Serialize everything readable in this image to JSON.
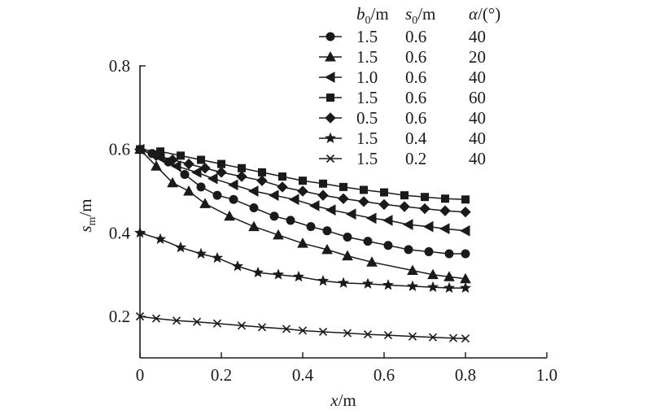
{
  "chart_data": {
    "type": "line",
    "xlabel": "x/m",
    "ylabel": "s_m/m",
    "xlim": [
      0,
      1.0
    ],
    "ylim": [
      0.1,
      0.8
    ],
    "x_ticks": [
      "0",
      "0.2",
      "0.4",
      "0.6",
      "0.8",
      "1.0"
    ],
    "y_ticks": [
      "0.2",
      "0.4",
      "0.6",
      "0.8"
    ],
    "grid": false,
    "legend_position": "top-right",
    "legend_headers": {
      "b0": {
        "sym": "b",
        "sub": "0",
        "unit": "/m"
      },
      "s0": {
        "sym": "s",
        "sub": "0",
        "unit": "/m"
      },
      "alpha": {
        "sym": "α",
        "sub": "",
        "unit": "/(°)"
      }
    },
    "series": [
      {
        "b0": "1.5",
        "s0": "0.6",
        "alpha": "40",
        "marker": "circle",
        "x": [
          0,
          0.03,
          0.07,
          0.11,
          0.15,
          0.19,
          0.23,
          0.28,
          0.33,
          0.37,
          0.42,
          0.46,
          0.51,
          0.56,
          0.61,
          0.66,
          0.71,
          0.76,
          0.8
        ],
        "y": [
          0.6,
          0.59,
          0.57,
          0.54,
          0.51,
          0.49,
          0.48,
          0.46,
          0.44,
          0.43,
          0.415,
          0.405,
          0.39,
          0.38,
          0.37,
          0.36,
          0.355,
          0.35,
          0.35
        ]
      },
      {
        "b0": "1.5",
        "s0": "0.6",
        "alpha": "20",
        "marker": "triangle-up",
        "x": [
          0,
          0.04,
          0.08,
          0.12,
          0.16,
          0.22,
          0.28,
          0.34,
          0.4,
          0.46,
          0.51,
          0.57,
          0.67,
          0.72,
          0.76,
          0.8
        ],
        "y": [
          0.6,
          0.56,
          0.52,
          0.5,
          0.47,
          0.44,
          0.415,
          0.395,
          0.375,
          0.36,
          0.345,
          0.33,
          0.31,
          0.3,
          0.295,
          0.29
        ]
      },
      {
        "b0": "1.0",
        "s0": "0.6",
        "alpha": "40",
        "marker": "triangle-left",
        "x": [
          0,
          0.05,
          0.09,
          0.14,
          0.18,
          0.23,
          0.28,
          0.33,
          0.38,
          0.43,
          0.47,
          0.52,
          0.57,
          0.61,
          0.66,
          0.71,
          0.75,
          0.8
        ],
        "y": [
          0.6,
          0.58,
          0.56,
          0.545,
          0.53,
          0.515,
          0.5,
          0.49,
          0.48,
          0.465,
          0.455,
          0.445,
          0.435,
          0.43,
          0.42,
          0.415,
          0.41,
          0.405
        ]
      },
      {
        "b0": "1.5",
        "s0": "0.6",
        "alpha": "60",
        "marker": "square",
        "x": [
          0,
          0.05,
          0.1,
          0.15,
          0.2,
          0.25,
          0.3,
          0.35,
          0.4,
          0.45,
          0.5,
          0.55,
          0.6,
          0.65,
          0.7,
          0.75,
          0.8
        ],
        "y": [
          0.6,
          0.595,
          0.585,
          0.575,
          0.565,
          0.555,
          0.545,
          0.535,
          0.525,
          0.518,
          0.51,
          0.503,
          0.497,
          0.49,
          0.486,
          0.482,
          0.48
        ]
      },
      {
        "b0": "0.5",
        "s0": "0.6",
        "alpha": "40",
        "marker": "diamond",
        "x": [
          0,
          0.04,
          0.08,
          0.12,
          0.16,
          0.2,
          0.25,
          0.3,
          0.35,
          0.4,
          0.45,
          0.5,
          0.55,
          0.6,
          0.65,
          0.7,
          0.75,
          0.8
        ],
        "y": [
          0.6,
          0.585,
          0.575,
          0.565,
          0.555,
          0.545,
          0.535,
          0.525,
          0.51,
          0.5,
          0.49,
          0.482,
          0.475,
          0.468,
          0.463,
          0.458,
          0.453,
          0.45
        ]
      },
      {
        "b0": "1.5",
        "s0": "0.4",
        "alpha": "40",
        "marker": "star",
        "x": [
          0,
          0.05,
          0.1,
          0.15,
          0.19,
          0.24,
          0.29,
          0.34,
          0.39,
          0.45,
          0.5,
          0.56,
          0.61,
          0.67,
          0.72,
          0.76,
          0.8
        ],
        "y": [
          0.4,
          0.385,
          0.365,
          0.35,
          0.34,
          0.32,
          0.305,
          0.3,
          0.295,
          0.285,
          0.28,
          0.278,
          0.275,
          0.272,
          0.27,
          0.268,
          0.268
        ]
      },
      {
        "b0": "1.5",
        "s0": "0.2",
        "alpha": "40",
        "marker": "x",
        "x": [
          0,
          0.04,
          0.09,
          0.14,
          0.19,
          0.25,
          0.3,
          0.36,
          0.4,
          0.45,
          0.51,
          0.56,
          0.61,
          0.67,
          0.72,
          0.77,
          0.8
        ],
        "y": [
          0.2,
          0.195,
          0.19,
          0.187,
          0.183,
          0.178,
          0.174,
          0.17,
          0.166,
          0.163,
          0.16,
          0.157,
          0.155,
          0.152,
          0.15,
          0.148,
          0.147
        ]
      }
    ]
  }
}
